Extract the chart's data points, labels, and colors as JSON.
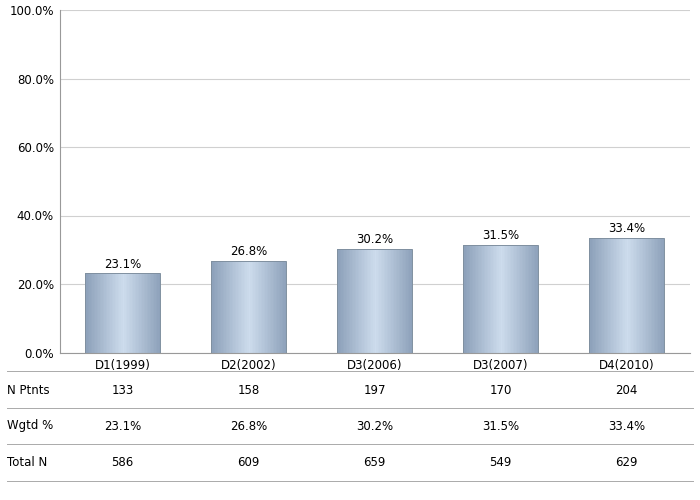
{
  "categories": [
    "D1(1999)",
    "D2(2002)",
    "D3(2006)",
    "D3(2007)",
    "D4(2010)"
  ],
  "values": [
    23.1,
    26.8,
    30.2,
    31.5,
    33.4
  ],
  "n_ptnts": [
    133,
    158,
    197,
    170,
    204
  ],
  "wgtd_pct": [
    "23.1%",
    "26.8%",
    "30.2%",
    "31.5%",
    "33.4%"
  ],
  "total_n": [
    586,
    609,
    659,
    549,
    629
  ],
  "ylim": [
    0,
    100
  ],
  "yticks": [
    0,
    20,
    40,
    60,
    80,
    100
  ],
  "ytick_labels": [
    "0.0%",
    "20.0%",
    "40.0%",
    "60.0%",
    "80.0%",
    "100.0%"
  ],
  "label_fontsize": 8.5,
  "tick_fontsize": 8.5,
  "table_fontsize": 8.5,
  "bar_width": 0.6,
  "background_color": "#ffffff",
  "grid_color": "#d0d0d0",
  "row_labels": [
    "N Ptnts",
    "Wgtd %",
    "Total N"
  ],
  "bar_left_color": "#8fa8c0",
  "bar_mid_color": "#d0e0ee",
  "bar_right_color": "#8fa8c0",
  "bar_edge_color": "#8090a0"
}
